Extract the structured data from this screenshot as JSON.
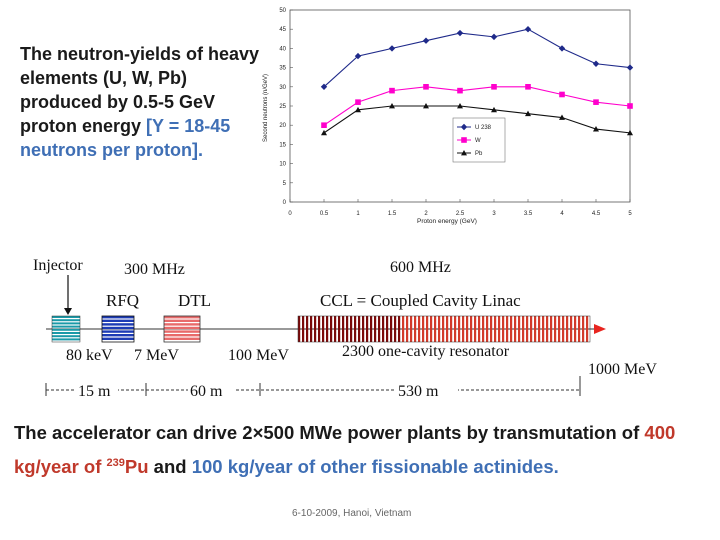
{
  "intro": {
    "part1": "The neutron-yields of heavy elements (U, W, Pb) produced by 0.5-5 GeV proton energy ",
    "highlight": "[Y = 18-45 neutrons per proton]."
  },
  "chart_data": {
    "type": "line",
    "x": [
      0.5,
      1,
      1.5,
      2,
      2.5,
      3,
      3.5,
      4,
      4.5,
      5
    ],
    "series": [
      {
        "name": "U 238",
        "values": [
          30,
          38,
          40,
          42,
          44,
          43,
          45,
          40,
          36,
          35
        ],
        "color": "#1f2a8a",
        "marker": "diamond"
      },
      {
        "name": "W",
        "values": [
          20,
          26,
          29,
          30,
          29,
          30,
          30,
          28,
          26,
          25
        ],
        "color": "#ff00cc",
        "marker": "square"
      },
      {
        "name": "Pb",
        "values": [
          18,
          24,
          25,
          25,
          25,
          24,
          23,
          22,
          19,
          18
        ],
        "color": "#111111",
        "marker": "triangle"
      }
    ],
    "xlabel": "Proton energy (GeV)",
    "ylabel": "Second neutrons (n/GeV)",
    "xlim": [
      0,
      5
    ],
    "ylim": [
      0,
      50
    ],
    "xticks": [
      "0",
      "0.5",
      "1",
      "1.5",
      "2",
      "2.5",
      "3",
      "3.5",
      "4",
      "4.5",
      "5"
    ],
    "yticks": [
      "0",
      "5",
      "10",
      "15",
      "20",
      "25",
      "30",
      "35",
      "40",
      "45",
      "50"
    ],
    "grid": false,
    "legend_position": "bottom-right"
  },
  "linac": {
    "injector": "Injector",
    "freq_low": "300 MHz",
    "freq_high": "600 MHz",
    "rfq": "RFQ",
    "dtl": "DTL",
    "ccl": "CCL = Coupled Cavity Linac",
    "e1": "80 keV",
    "e2": "7 MeV",
    "e3": "100 MeV",
    "resonator": "2300 one-cavity resonator",
    "e4": "1000 MeV",
    "len1": "15 m",
    "len2": "60 m",
    "len3": "530 m",
    "colors": {
      "injector": "#1a9aa8",
      "rfq": "#1c3bb5",
      "dtl": "#e86a6a",
      "ccl_dark": "#7a0a0a",
      "ccl_light": "#d23a2a",
      "beam": "#e8251f"
    }
  },
  "note": {
    "p1": "The accelerator can drive 2×500 MWe power plants by transmutation of ",
    "red": "400 kg/year of ",
    "sup": "239",
    "red2": "Pu",
    "p2": " and ",
    "blue": "100 kg/year of other fissionable actinides."
  },
  "footer": "6-10-2009, Hanoi, Vietnam"
}
